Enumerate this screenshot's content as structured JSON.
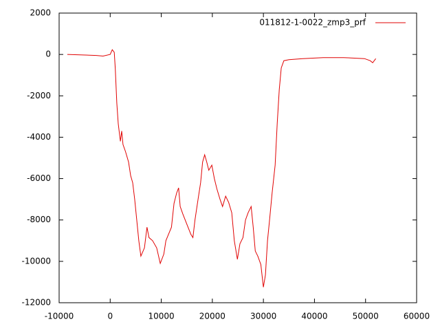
{
  "chart_data": {
    "type": "line",
    "x": [
      -8400,
      -2700,
      -1400,
      0,
      400,
      800,
      1000,
      1300,
      1580,
      2000,
      2250,
      2500,
      3000,
      3600,
      4000,
      4400,
      4800,
      5200,
      5600,
      6000,
      6700,
      7200,
      7600,
      8300,
      9100,
      9800,
      10500,
      10900,
      11400,
      12000,
      12500,
      13000,
      13400,
      13700,
      14200,
      15000,
      15800,
      16200,
      16600,
      17200,
      17700,
      18100,
      18500,
      18900,
      19300,
      19900,
      20400,
      20900,
      21500,
      22000,
      22600,
      23200,
      23800,
      24300,
      24900,
      25400,
      26000,
      26500,
      27000,
      27600,
      28000,
      28400,
      28900,
      29500,
      30000,
      30400,
      30800,
      31200,
      31700,
      32300,
      32700,
      33100,
      33500,
      34000,
      35000,
      37700,
      41700,
      45700,
      49800,
      50900,
      51400,
      52000
    ],
    "series": [
      {
        "name": "011812-1-0022_zmp3_prf",
        "color": "#e00000",
        "values": [
          0,
          -50,
          -80,
          0,
          230,
          100,
          -700,
          -2350,
          -3350,
          -4200,
          -3700,
          -4350,
          -4700,
          -5200,
          -5850,
          -6200,
          -7000,
          -8000,
          -9000,
          -9750,
          -9350,
          -8350,
          -8850,
          -9000,
          -9350,
          -10100,
          -9650,
          -9000,
          -8700,
          -8350,
          -7200,
          -6700,
          -6450,
          -7350,
          -7700,
          -8200,
          -8700,
          -8850,
          -8000,
          -7000,
          -6200,
          -5200,
          -4850,
          -5200,
          -5600,
          -5350,
          -6000,
          -6500,
          -7000,
          -7350,
          -6850,
          -7150,
          -7650,
          -9000,
          -9900,
          -9150,
          -8850,
          -8000,
          -7650,
          -7350,
          -8350,
          -9500,
          -9750,
          -10150,
          -11250,
          -10650,
          -9000,
          -8000,
          -6700,
          -5350,
          -3350,
          -1700,
          -650,
          -300,
          -250,
          -200,
          -150,
          -150,
          -200,
          -300,
          -400,
          -200
        ]
      }
    ],
    "xlim": [
      -10000,
      60000
    ],
    "xticks": [
      -10000,
      0,
      10000,
      20000,
      30000,
      40000,
      50000,
      60000
    ],
    "ylim": [
      -12000,
      2000
    ],
    "yticks": [
      -12000,
      -10000,
      -8000,
      -6000,
      -4000,
      -2000,
      0,
      2000
    ],
    "legend": "top-right"
  }
}
